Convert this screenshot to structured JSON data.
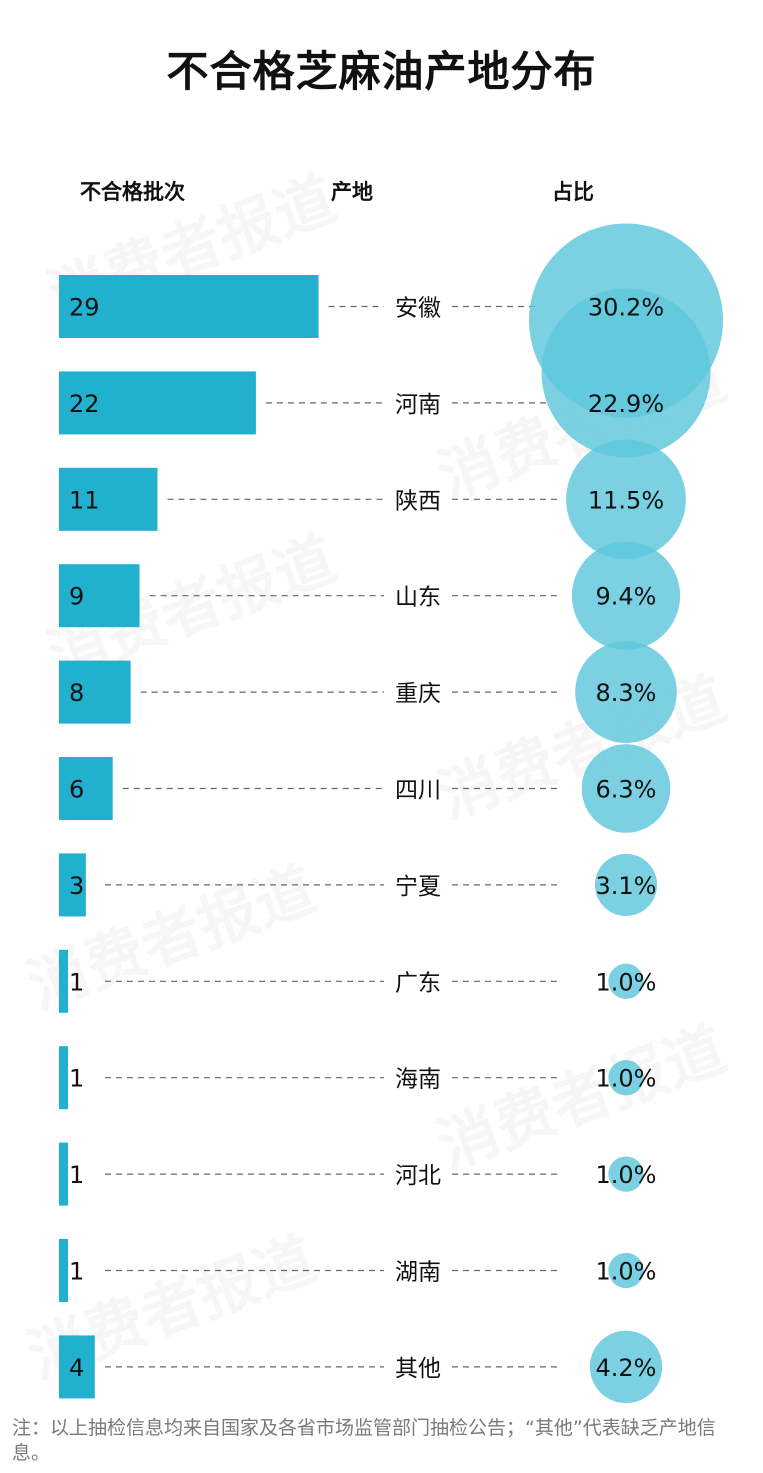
{
  "chart_data": {
    "type": "bar",
    "title": "不合格芝麻油产地分布",
    "columns": {
      "count": "不合格批次",
      "origin": "产地",
      "share": "占比"
    },
    "categories": [
      "安徽",
      "河南",
      "陕西",
      "山东",
      "重庆",
      "四川",
      "宁夏",
      "广东",
      "海南",
      "河北",
      "湖南",
      "其他"
    ],
    "values": [
      29,
      22,
      11,
      9,
      8,
      6,
      3,
      1,
      1,
      1,
      1,
      4
    ],
    "value_labels": [
      "29",
      "22",
      "11",
      "9",
      "8",
      "6",
      "3",
      "1",
      "1",
      "1",
      "1",
      "4"
    ],
    "shares": [
      30.2,
      22.9,
      11.5,
      9.4,
      8.3,
      6.3,
      3.1,
      1.0,
      1.0,
      1.0,
      1.0,
      4.2
    ],
    "share_labels": [
      "30.2%",
      "22.9%",
      "11.5%",
      "9.4%",
      "8.3%",
      "6.3%",
      "3.1%",
      "1.0%",
      "1.0%",
      "1.0%",
      "1.0%",
      "4.2%"
    ],
    "colors": {
      "bar": "#22b0cf",
      "bubble": "#5ec7dc",
      "leader": "#666666"
    }
  },
  "note": "注：以上抽检信息均来自国家及各省市场监管部门抽检公告；“其他”代表缺乏产地信息。",
  "watermark": "消费者报道"
}
